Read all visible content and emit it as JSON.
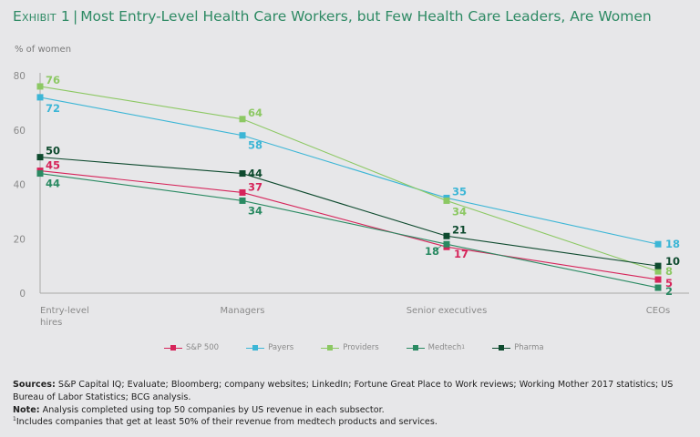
{
  "header": {
    "exhibit": "Exhibit 1",
    "separator": "|",
    "title": "Most Entry-Level Health Care Workers, but Few Health Care Leaders, Are Women"
  },
  "chart_data": {
    "type": "line",
    "title": "Most Entry-Level Health Care Workers, but Few Health Care Leaders, Are Women",
    "ylabel": "% of women",
    "xlabel": "",
    "ylim": [
      0,
      80
    ],
    "yticks": [
      0,
      20,
      40,
      60,
      80
    ],
    "grid": false,
    "legend_position": "bottom",
    "categories": [
      "Entry-level hires",
      "Managers",
      "Senior executives",
      "CEOs"
    ],
    "category_lines": [
      [
        "Entry-level",
        "hires"
      ],
      [
        "Managers"
      ],
      [
        "Senior executives"
      ],
      [
        "CEOs"
      ]
    ],
    "series": [
      {
        "name": "S&P 500",
        "legend_label": "S&P 500",
        "color": "#d6245a",
        "values": [
          45,
          37,
          17,
          5
        ]
      },
      {
        "name": "Payers",
        "legend_label": "Payers",
        "color": "#3cb6d6",
        "values": [
          72,
          58,
          35,
          18
        ]
      },
      {
        "name": "Providers",
        "legend_label": "Providers",
        "color": "#8cc863",
        "values": [
          76,
          64,
          34,
          8
        ]
      },
      {
        "name": "Medtech",
        "legend_label": "Medtech",
        "legend_sup": "1",
        "color": "#2a8a62",
        "values": [
          44,
          34,
          18,
          2
        ]
      },
      {
        "name": "Pharma",
        "legend_label": "Pharma",
        "color": "#0e4a2e",
        "values": [
          50,
          44,
          21,
          10
        ]
      }
    ]
  },
  "footer": {
    "sources_label": "Sources:",
    "sources_text": "S&P Capital IQ; Evaluate; Bloomberg; company websites; LinkedIn; Fortune Great Place to Work reviews; Working Mother 2017 statistics; US Bureau of Labor Statistics; BCG analysis.",
    "note_label": "Note:",
    "note_text": "Analysis completed using top 50 companies by US revenue in each subsector.",
    "footnote_marker": "1",
    "footnote_text": "Includes companies that get at least 50% of their revenue from medtech products and services."
  }
}
